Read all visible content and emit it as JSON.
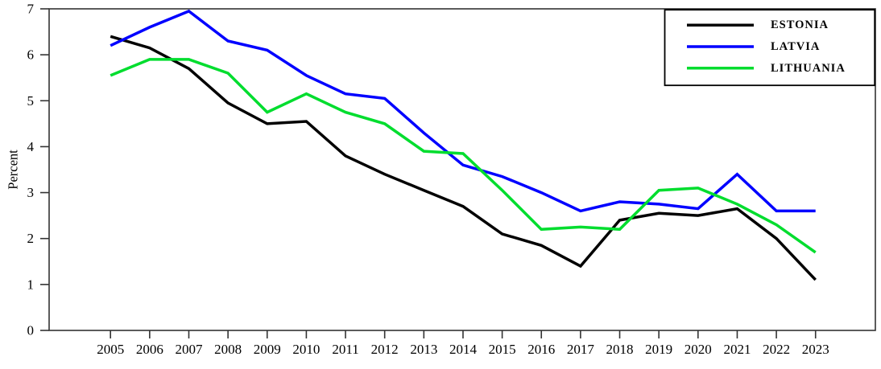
{
  "chart_data": {
    "type": "line",
    "title": "",
    "xlabel": "",
    "ylabel": "Percent",
    "x": [
      2005,
      2006,
      2007,
      2008,
      2009,
      2010,
      2011,
      2012,
      2013,
      2014,
      2015,
      2016,
      2017,
      2018,
      2019,
      2020,
      2021,
      2022,
      2023
    ],
    "ylim": [
      0,
      7
    ],
    "yticks": [
      0,
      1,
      2,
      3,
      4,
      5,
      6,
      7
    ],
    "grid": false,
    "plot_border": true,
    "legend_position": "top-right-inside",
    "axis_color": "#333333",
    "series": [
      {
        "name": "ESTONIA",
        "color": "#000000",
        "values": [
          6.4,
          6.15,
          5.7,
          4.95,
          4.5,
          4.55,
          3.8,
          3.4,
          3.05,
          2.7,
          2.1,
          1.85,
          1.4,
          2.4,
          2.55,
          2.5,
          2.65,
          2.0,
          1.1
        ]
      },
      {
        "name": "LATVIA",
        "color": "#0000ff",
        "values": [
          6.2,
          6.6,
          6.95,
          6.3,
          6.1,
          5.55,
          5.15,
          5.05,
          4.3,
          3.6,
          3.35,
          3.0,
          2.6,
          2.8,
          2.75,
          2.65,
          3.4,
          2.6,
          2.6
        ]
      },
      {
        "name": "LITHUANIA",
        "color": "#00dd2e",
        "values": [
          5.55,
          5.9,
          5.9,
          5.6,
          4.75,
          5.15,
          4.75,
          4.5,
          3.9,
          3.85,
          3.05,
          2.2,
          2.25,
          2.2,
          3.05,
          3.1,
          2.75,
          2.3,
          1.7
        ]
      }
    ]
  }
}
